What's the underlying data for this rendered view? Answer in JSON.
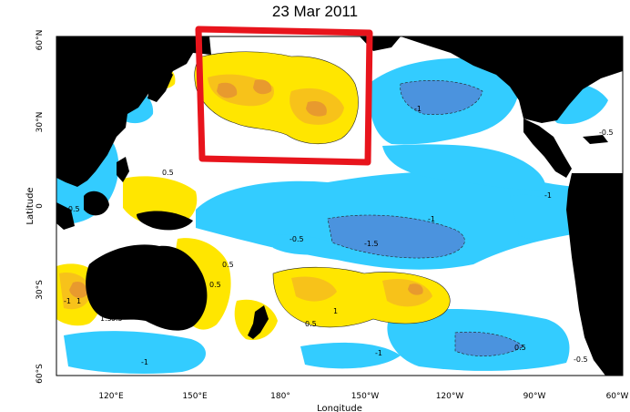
{
  "title": "23 Mar 2011",
  "map": {
    "xlabel": "Longitude",
    "ylabel": "Latitude",
    "lon_ticks": [
      "120°E",
      "150°E",
      "180°",
      "150°W",
      "120°W",
      "90°W",
      "60°W"
    ],
    "lat_ticks": [
      "60°N",
      "30°N",
      "0",
      "30°S",
      "60°S"
    ],
    "contour_labels": [
      "-1",
      "-1",
      "-0.5",
      "-1",
      "0.5",
      "-0.5",
      "-1",
      "-1.5",
      "-0.5",
      "-1",
      "1",
      "1.5",
      "0.5",
      "0.5",
      "0.5",
      "1",
      "0.5",
      "-1",
      "-1",
      "-0.5",
      "-0.5",
      "1"
    ],
    "colors": {
      "land": "#000000",
      "cool_light": "#33ccff",
      "cool_mid": "#1fa8e8",
      "cool_deep": "#4b93de",
      "warm_light": "#ffe600",
      "warm_mid": "#f7c21a",
      "warm_deep": "#e89a2e",
      "highlight_box": "#e8141c"
    }
  }
}
